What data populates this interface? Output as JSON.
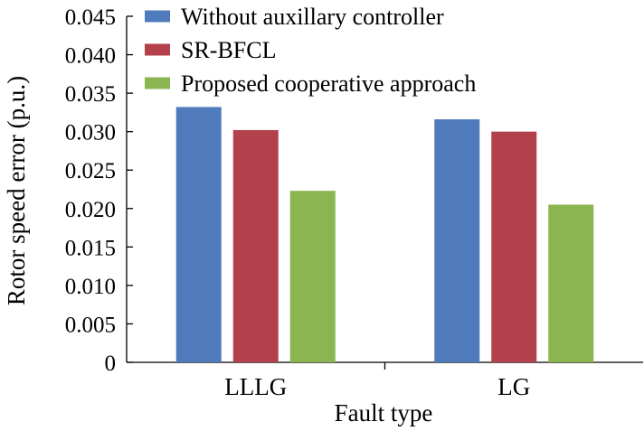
{
  "chart_data": {
    "type": "bar",
    "xlabel": "Fault type",
    "ylabel": "Rotor speed error (p.u.)",
    "categories": [
      "LLLG",
      "LG"
    ],
    "ylim": [
      0,
      0.045
    ],
    "yticks": [
      0,
      0.005,
      0.01,
      0.015,
      0.02,
      0.025,
      0.03,
      0.035,
      0.04,
      0.045
    ],
    "ytick_labels": [
      "0",
      "0.005",
      "0.010",
      "0.015",
      "0.020",
      "0.025",
      "0.030",
      "0.035",
      "0.040",
      "0.045"
    ],
    "series": [
      {
        "name": "Without auxillary controller",
        "color": "#4f7bbd",
        "values": [
          0.0332,
          0.0316
        ]
      },
      {
        "name": "SR-BFCL",
        "color": "#b2414c",
        "values": [
          0.0302,
          0.03
        ]
      },
      {
        "name": "Proposed cooperative approach",
        "color": "#8ab551",
        "values": [
          0.0223,
          0.0205
        ]
      }
    ],
    "legend_position": "top",
    "grid": false
  }
}
